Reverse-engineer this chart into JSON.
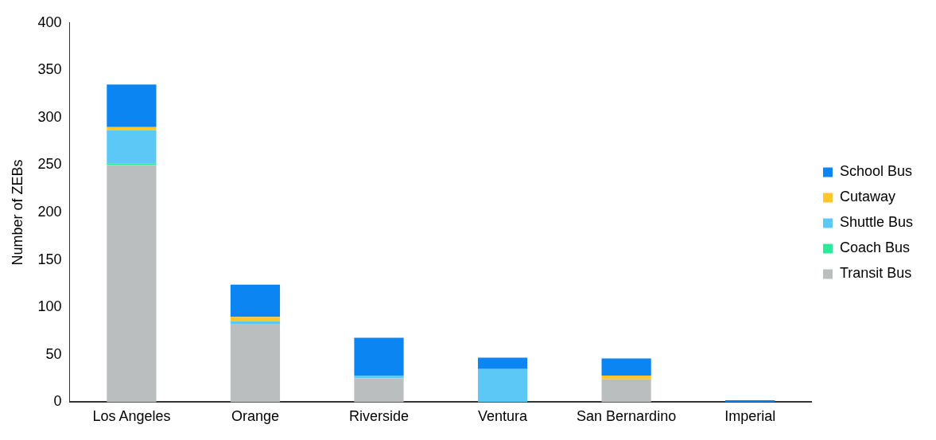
{
  "chart_data": {
    "type": "bar",
    "stacked": true,
    "ylabel": "Number of ZEBs",
    "categories": [
      "Los Angeles",
      "Orange",
      "Riverside",
      "Ventura",
      "San Bernardino",
      "Imperial"
    ],
    "series": [
      {
        "name": "Transit Bus",
        "color": "#bbbebe",
        "values": [
          250,
          82,
          25,
          0,
          24,
          0
        ]
      },
      {
        "name": "Coach Bus",
        "color": "#2ee89a",
        "values": [
          2,
          0,
          0,
          0,
          0,
          0
        ]
      },
      {
        "name": "Shuttle Bus",
        "color": "#5bc8f5",
        "values": [
          35,
          3,
          3,
          35,
          0,
          0
        ]
      },
      {
        "name": "Cutaway",
        "color": "#ffc72c",
        "values": [
          3,
          5,
          0,
          0,
          4,
          0
        ]
      },
      {
        "name": "School Bus",
        "color": "#0a85f2",
        "values": [
          45,
          34,
          40,
          12,
          18,
          2
        ]
      }
    ],
    "ylim": [
      0,
      400
    ],
    "yticks": [
      0,
      50,
      100,
      150,
      200,
      250,
      300,
      350,
      400
    ],
    "grid": false,
    "legend": "right"
  }
}
